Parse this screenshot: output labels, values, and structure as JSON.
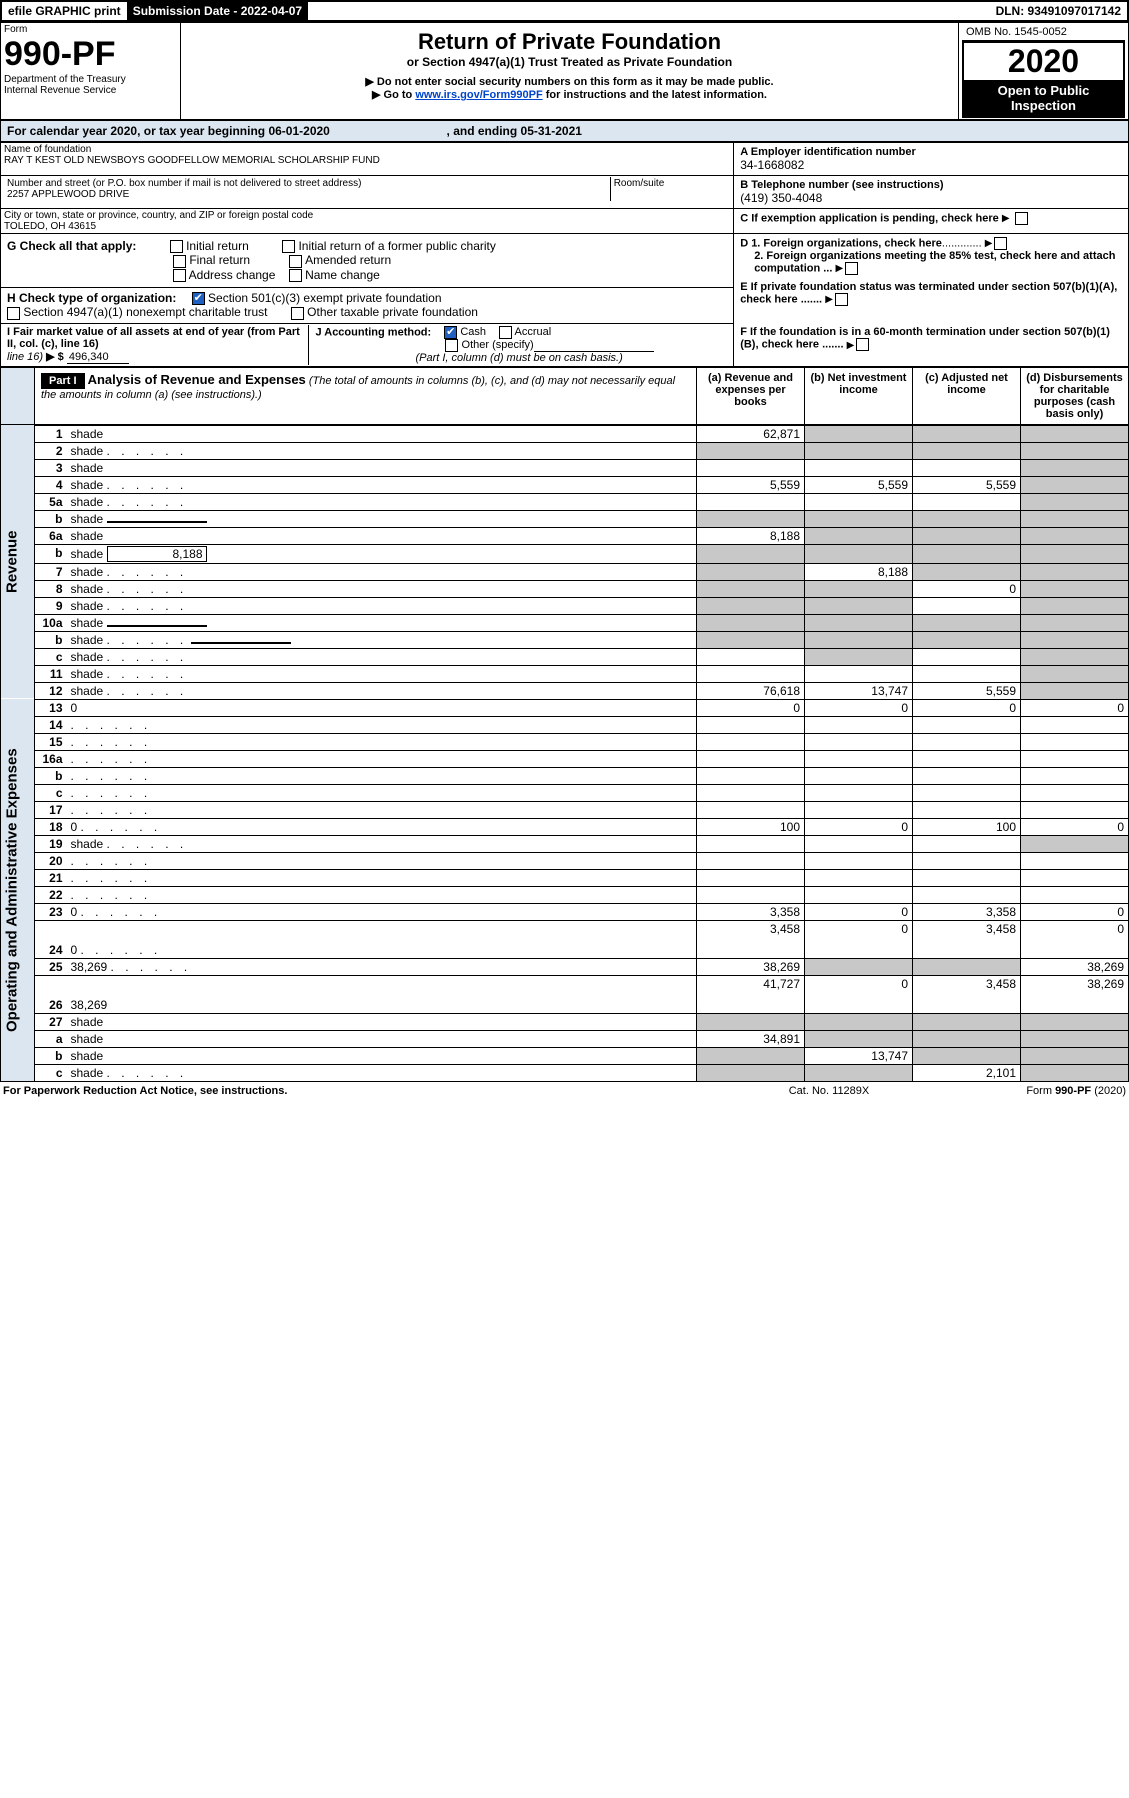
{
  "topbar": {
    "efile": "efile GRAPHIC print",
    "subDateLabel": "Submission Date - 2022-04-07",
    "dln": "DLN: 93491097017142"
  },
  "header": {
    "formWord": "Form",
    "formNo": "990-PF",
    "dept": "Department of the Treasury",
    "irs": "Internal Revenue Service",
    "title": "Return of Private Foundation",
    "subtitle": "or Section 4947(a)(1) Trust Treated as Private Foundation",
    "note1": "▶ Do not enter social security numbers on this form as it may be made public.",
    "note2_pre": "▶ Go to ",
    "note2_link": "www.irs.gov/Form990PF",
    "note2_post": " for instructions and the latest information.",
    "omb": "OMB No. 1545-0052",
    "year": "2020",
    "open": "Open to Public Inspection"
  },
  "cal": {
    "text_a": "For calendar year 2020, or tax year beginning ",
    "begin": "06-01-2020",
    "text_b": ", and ending ",
    "end": "05-31-2021"
  },
  "id": {
    "nameLabel": "Name of foundation",
    "name": "RAY T KEST OLD NEWSBOYS GOODFELLOW MEMORIAL SCHOLARSHIP FUND",
    "addrLabel": "Number and street (or P.O. box number if mail is not delivered to street address)",
    "addr": "2257 APPLEWOOD DRIVE",
    "roomLabel": "Room/suite",
    "cityLabel": "City or town, state or province, country, and ZIP or foreign postal code",
    "city": "TOLEDO, OH  43615",
    "einLabel": "A Employer identification number",
    "ein": "34-1668082",
    "telLabel": "B Telephone number (see instructions)",
    "tel": "(419) 350-4048",
    "cLabel": "C If exemption application is pending, check here"
  },
  "g": {
    "label": "G Check all that apply:",
    "opts": [
      "Initial return",
      "Initial return of a former public charity",
      "Final return",
      "Amended return",
      "Address change",
      "Name change"
    ]
  },
  "h": {
    "label": "H Check type of organization:",
    "opt1": "Section 501(c)(3) exempt private foundation",
    "opt2": "Section 4947(a)(1) nonexempt charitable trust",
    "opt3": "Other taxable private foundation"
  },
  "i": {
    "label": "I Fair market value of all assets at end of year (from Part II, col. (c), line 16)",
    "arrow": "▶ $",
    "value": "496,340"
  },
  "j": {
    "label": "J Accounting method:",
    "cash": "Cash",
    "accrual": "Accrual",
    "other": "Other (specify)",
    "note": "(Part I, column (d) must be on cash basis.)"
  },
  "d": {
    "d1": "D 1. Foreign organizations, check here",
    "d2": "2. Foreign organizations meeting the 85% test, check here and attach computation ...",
    "e": "E  If private foundation status was terminated under section 507(b)(1)(A), check here .......",
    "f": "F  If the foundation is in a 60-month termination under section 507(b)(1)(B), check here ......."
  },
  "part1": {
    "label": "Part I",
    "title": "Analysis of Revenue and Expenses",
    "paren": " (The total of amounts in columns (b), (c), and (d) may not necessarily equal the amounts in column (a) (see instructions).)",
    "colA": "(a)  Revenue and expenses per books",
    "colB": "(b)  Net investment income",
    "colC": "(c)  Adjusted net income",
    "colD": "(d)  Disbursements for charitable purposes (cash basis only)"
  },
  "sidebars": {
    "rev": "Revenue",
    "ops": "Operating and Administrative Expenses"
  },
  "rows": [
    {
      "n": "1",
      "d": "shade",
      "a": "62,871",
      "b": "shade",
      "c": "shade"
    },
    {
      "n": "2",
      "d": "shade",
      "dots": true,
      "a": "shade",
      "b": "shade",
      "c": "shade"
    },
    {
      "n": "3",
      "d": "shade",
      "a": "",
      "b": "",
      "c": ""
    },
    {
      "n": "4",
      "d": "shade",
      "dots": true,
      "a": "5,559",
      "b": "5,559",
      "c": "5,559"
    },
    {
      "n": "5a",
      "d": "shade",
      "dots": true,
      "a": "",
      "b": "",
      "c": ""
    },
    {
      "n": "b",
      "d": "shade",
      "input": true,
      "a": "shade",
      "b": "shade",
      "c": "shade"
    },
    {
      "n": "6a",
      "d": "shade",
      "a": "8,188",
      "b": "shade",
      "c": "shade"
    },
    {
      "n": "b",
      "d": "shade",
      "input": true,
      "inval": "8,188",
      "a": "shade",
      "b": "shade",
      "c": "shade"
    },
    {
      "n": "7",
      "d": "shade",
      "dots": true,
      "a": "shade",
      "b": "8,188",
      "c": "shade"
    },
    {
      "n": "8",
      "d": "shade",
      "dots": true,
      "a": "shade",
      "b": "shade",
      "c": "0"
    },
    {
      "n": "9",
      "d": "shade",
      "dots": true,
      "a": "shade",
      "b": "shade",
      "c": ""
    },
    {
      "n": "10a",
      "d": "shade",
      "input": true,
      "a": "shade",
      "b": "shade",
      "c": "shade"
    },
    {
      "n": "b",
      "d": "shade",
      "dots": true,
      "input": true,
      "a": "shade",
      "b": "shade",
      "c": "shade"
    },
    {
      "n": "c",
      "d": "shade",
      "dots": true,
      "a": "",
      "b": "shade",
      "c": ""
    },
    {
      "n": "11",
      "d": "shade",
      "dots": true,
      "a": "",
      "b": "",
      "c": ""
    },
    {
      "n": "12",
      "d": "shade",
      "dots": true,
      "a": "76,618",
      "b": "13,747",
      "c": "5,559"
    },
    {
      "n": "13",
      "d": "0",
      "a": "0",
      "b": "0",
      "c": "0"
    },
    {
      "n": "14",
      "d": "",
      "dots": true,
      "a": "",
      "b": "",
      "c": ""
    },
    {
      "n": "15",
      "d": "",
      "dots": true,
      "a": "",
      "b": "",
      "c": ""
    },
    {
      "n": "16a",
      "d": "",
      "dots": true,
      "a": "",
      "b": "",
      "c": ""
    },
    {
      "n": "b",
      "d": "",
      "dots": true,
      "a": "",
      "b": "",
      "c": ""
    },
    {
      "n": "c",
      "d": "",
      "dots": true,
      "a": "",
      "b": "",
      "c": ""
    },
    {
      "n": "17",
      "d": "",
      "dots": true,
      "a": "",
      "b": "",
      "c": ""
    },
    {
      "n": "18",
      "d": "0",
      "dots": true,
      "a": "100",
      "b": "0",
      "c": "100"
    },
    {
      "n": "19",
      "d": "shade",
      "dots": true,
      "a": "",
      "b": "",
      "c": ""
    },
    {
      "n": "20",
      "d": "",
      "dots": true,
      "a": "",
      "b": "",
      "c": ""
    },
    {
      "n": "21",
      "d": "",
      "dots": true,
      "a": "",
      "b": "",
      "c": ""
    },
    {
      "n": "22",
      "d": "",
      "dots": true,
      "a": "",
      "b": "",
      "c": ""
    },
    {
      "n": "23",
      "d": "0",
      "dots": true,
      "a": "3,358",
      "b": "0",
      "c": "3,358"
    },
    {
      "n": "24",
      "d": "0",
      "dots": true,
      "a": "3,458",
      "b": "0",
      "c": "3,458",
      "tall": true
    },
    {
      "n": "25",
      "d": "38,269",
      "dots": true,
      "a": "38,269",
      "b": "shade",
      "c": "shade"
    },
    {
      "n": "26",
      "d": "38,269",
      "a": "41,727",
      "b": "0",
      "c": "3,458",
      "tall": true
    },
    {
      "n": "27",
      "d": "shade",
      "a": "shade",
      "b": "shade",
      "c": "shade"
    },
    {
      "n": "a",
      "d": "shade",
      "a": "34,891",
      "b": "shade",
      "c": "shade"
    },
    {
      "n": "b",
      "d": "shade",
      "a": "shade",
      "b": "13,747",
      "c": "shade"
    },
    {
      "n": "c",
      "d": "shade",
      "dots": true,
      "a": "shade",
      "b": "shade",
      "c": "2,101"
    }
  ],
  "footer": {
    "left": "For Paperwork Reduction Act Notice, see instructions.",
    "mid": "Cat. No. 11289X",
    "right": "Form 990-PF (2020)"
  }
}
